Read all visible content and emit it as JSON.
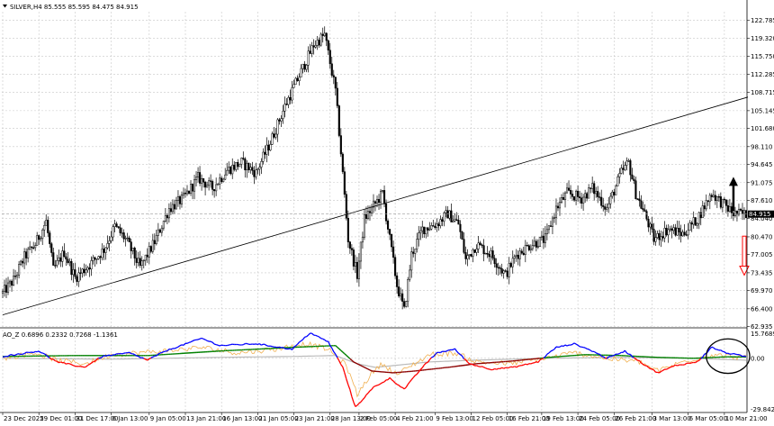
{
  "window": {
    "main_header": "SILVER,H4  85.555 85.595 84.475 84.915",
    "sub_header": "AO_Z 0.6896 0.2332 0.7268 -1.1361",
    "current_price_label": "84.915",
    "collapse_glyph": "triangle-down-icon"
  },
  "colors": {
    "background": "#ffffff",
    "grid": "#c8c8c8",
    "candle": "#000000",
    "trendline": "#000000",
    "arrow_up": "#000000",
    "arrow_down": "#ff0000",
    "ellipse": "#000000"
  },
  "chart_data": [
    {
      "type": "candlestick",
      "symbol": "SILVER",
      "timeframe": "H4",
      "ohlc_header": {
        "open": 85.555,
        "high": 85.595,
        "low": 84.475,
        "close": 84.915
      },
      "ylim": [
        62.935,
        124.5
      ],
      "y_ticks": [
        122.785,
        119.32,
        115.75,
        112.285,
        108.715,
        105.145,
        101.68,
        98.11,
        94.645,
        91.075,
        87.61,
        84.04,
        80.47,
        77.005,
        73.435,
        69.97,
        66.4,
        62.935
      ],
      "y_tick_labels": [
        "122.785",
        "119.320",
        "115.750",
        "112.285",
        "108.715",
        "105.145",
        "101.680",
        "98.110",
        "94.645",
        "91.075",
        "87.610",
        "84.040",
        "80.470",
        "77.005",
        "73.435",
        "69.970",
        "66.400",
        "62.935"
      ],
      "current_price": 84.915,
      "anchors": [
        {
          "i": 0,
          "p": 69.5
        },
        {
          "i": 6,
          "p": 72
        },
        {
          "i": 12,
          "p": 76.5
        },
        {
          "i": 18,
          "p": 79
        },
        {
          "i": 24,
          "p": 83.5
        },
        {
          "i": 28,
          "p": 74
        },
        {
          "i": 34,
          "p": 77.5
        },
        {
          "i": 40,
          "p": 72.5
        },
        {
          "i": 48,
          "p": 75
        },
        {
          "i": 56,
          "p": 78
        },
        {
          "i": 62,
          "p": 82.5
        },
        {
          "i": 68,
          "p": 80
        },
        {
          "i": 76,
          "p": 74.5
        },
        {
          "i": 84,
          "p": 79.5
        },
        {
          "i": 92,
          "p": 86
        },
        {
          "i": 100,
          "p": 88
        },
        {
          "i": 108,
          "p": 92
        },
        {
          "i": 116,
          "p": 90
        },
        {
          "i": 124,
          "p": 93.5
        },
        {
          "i": 132,
          "p": 95
        },
        {
          "i": 140,
          "p": 93
        },
        {
          "i": 148,
          "p": 99
        },
        {
          "i": 156,
          "p": 106
        },
        {
          "i": 164,
          "p": 112
        },
        {
          "i": 172,
          "p": 118
        },
        {
          "i": 178,
          "p": 120
        },
        {
          "i": 184,
          "p": 109
        },
        {
          "i": 187,
          "p": 97
        },
        {
          "i": 191,
          "p": 80
        },
        {
          "i": 196,
          "p": 73
        },
        {
          "i": 200,
          "p": 84
        },
        {
          "i": 206,
          "p": 87
        },
        {
          "i": 210,
          "p": 89
        },
        {
          "i": 214,
          "p": 80
        },
        {
          "i": 218,
          "p": 71
        },
        {
          "i": 222,
          "p": 66
        },
        {
          "i": 226,
          "p": 77
        },
        {
          "i": 232,
          "p": 82
        },
        {
          "i": 240,
          "p": 83
        },
        {
          "i": 246,
          "p": 85
        },
        {
          "i": 252,
          "p": 83
        },
        {
          "i": 256,
          "p": 76
        },
        {
          "i": 262,
          "p": 79
        },
        {
          "i": 270,
          "p": 77
        },
        {
          "i": 278,
          "p": 73
        },
        {
          "i": 284,
          "p": 77
        },
        {
          "i": 292,
          "p": 79
        },
        {
          "i": 300,
          "p": 80
        },
        {
          "i": 306,
          "p": 86
        },
        {
          "i": 312,
          "p": 89
        },
        {
          "i": 320,
          "p": 88
        },
        {
          "i": 326,
          "p": 90
        },
        {
          "i": 334,
          "p": 86
        },
        {
          "i": 342,
          "p": 93
        },
        {
          "i": 346,
          "p": 95
        },
        {
          "i": 350,
          "p": 89
        },
        {
          "i": 356,
          "p": 84
        },
        {
          "i": 360,
          "p": 80
        },
        {
          "i": 368,
          "p": 82
        },
        {
          "i": 376,
          "p": 81
        },
        {
          "i": 384,
          "p": 84
        },
        {
          "i": 392,
          "p": 89
        },
        {
          "i": 398,
          "p": 87
        },
        {
          "i": 404,
          "p": 85
        },
        {
          "i": 410,
          "p": 84.9
        }
      ],
      "trendline": {
        "start_index": 0,
        "start_price": 65.2,
        "end_index": 412,
        "end_price": 107.8
      },
      "annotation_arrows": [
        {
          "direction": "up",
          "index": 404,
          "price_from": 85.5,
          "price_to": 91.5
        },
        {
          "direction": "down",
          "index": 410,
          "price_from": 80.6,
          "price_to": 73.5
        }
      ]
    },
    {
      "type": "line",
      "name": "AO_Z",
      "header_values": [
        0.6896,
        0.2332,
        0.7268,
        -1.1361
      ],
      "ylim": [
        -29.8424,
        15.7689
      ],
      "y_ticks": [
        15.7689,
        0.0,
        -29.8424
      ],
      "y_tick_labels": [
        "15.7689",
        "0.00",
        "-29.8424"
      ],
      "series": [
        {
          "color": "#0000ff",
          "rule": "line1_when_positive"
        },
        {
          "color": "#ff0000",
          "rule": "line1_when_negative"
        },
        {
          "color": "#f0b050",
          "values_key": "line2"
        },
        {
          "color": "#008000",
          "rule": "line3_when_positive"
        },
        {
          "color": "#8b0000",
          "rule": "line3_when_negative"
        },
        {
          "color": "#bbbbbb",
          "values_key": "line4"
        }
      ],
      "line1_anchors": [
        {
          "i": 0,
          "v": 1
        },
        {
          "i": 20,
          "v": 4
        },
        {
          "i": 30,
          "v": -2
        },
        {
          "i": 45,
          "v": -5
        },
        {
          "i": 55,
          "v": 1
        },
        {
          "i": 70,
          "v": 3
        },
        {
          "i": 80,
          "v": -1
        },
        {
          "i": 90,
          "v": 4
        },
        {
          "i": 110,
          "v": 11
        },
        {
          "i": 120,
          "v": 7
        },
        {
          "i": 140,
          "v": 8
        },
        {
          "i": 160,
          "v": 5
        },
        {
          "i": 170,
          "v": 14
        },
        {
          "i": 180,
          "v": 9
        },
        {
          "i": 188,
          "v": -5
        },
        {
          "i": 195,
          "v": -27
        },
        {
          "i": 205,
          "v": -16
        },
        {
          "i": 214,
          "v": -11
        },
        {
          "i": 222,
          "v": -17
        },
        {
          "i": 232,
          "v": -5
        },
        {
          "i": 240,
          "v": 3
        },
        {
          "i": 250,
          "v": 5
        },
        {
          "i": 258,
          "v": -3
        },
        {
          "i": 270,
          "v": -6
        },
        {
          "i": 282,
          "v": -5
        },
        {
          "i": 296,
          "v": -2
        },
        {
          "i": 306,
          "v": 6
        },
        {
          "i": 316,
          "v": 8
        },
        {
          "i": 326,
          "v": 4
        },
        {
          "i": 334,
          "v": 0
        },
        {
          "i": 344,
          "v": 4
        },
        {
          "i": 354,
          "v": -3
        },
        {
          "i": 362,
          "v": -8
        },
        {
          "i": 372,
          "v": -4
        },
        {
          "i": 384,
          "v": -2
        },
        {
          "i": 392,
          "v": 6
        },
        {
          "i": 400,
          "v": 3
        },
        {
          "i": 412,
          "v": 0.7
        }
      ],
      "line2_anchors": [
        {
          "i": 0,
          "v": 0
        },
        {
          "i": 18,
          "v": 3
        },
        {
          "i": 30,
          "v": -1
        },
        {
          "i": 46,
          "v": -3
        },
        {
          "i": 60,
          "v": 2
        },
        {
          "i": 90,
          "v": 4
        },
        {
          "i": 110,
          "v": 6
        },
        {
          "i": 130,
          "v": 3
        },
        {
          "i": 150,
          "v": 5
        },
        {
          "i": 168,
          "v": 8
        },
        {
          "i": 180,
          "v": 5
        },
        {
          "i": 190,
          "v": -4
        },
        {
          "i": 196,
          "v": -20
        },
        {
          "i": 204,
          "v": -8
        },
        {
          "i": 210,
          "v": -3
        },
        {
          "i": 218,
          "v": -9
        },
        {
          "i": 226,
          "v": -4
        },
        {
          "i": 236,
          "v": 2
        },
        {
          "i": 250,
          "v": 3
        },
        {
          "i": 262,
          "v": -2
        },
        {
          "i": 280,
          "v": -3
        },
        {
          "i": 300,
          "v": 0
        },
        {
          "i": 316,
          "v": 3
        },
        {
          "i": 334,
          "v": 0
        },
        {
          "i": 352,
          "v": -2
        },
        {
          "i": 362,
          "v": -7
        },
        {
          "i": 376,
          "v": -2
        },
        {
          "i": 392,
          "v": 2
        },
        {
          "i": 412,
          "v": 0.2
        }
      ],
      "line3_anchors": [
        {
          "i": 0,
          "v": 1
        },
        {
          "i": 40,
          "v": 1.5
        },
        {
          "i": 80,
          "v": 1.5
        },
        {
          "i": 120,
          "v": 4
        },
        {
          "i": 160,
          "v": 6
        },
        {
          "i": 184,
          "v": 7
        },
        {
          "i": 194,
          "v": -2
        },
        {
          "i": 204,
          "v": -7
        },
        {
          "i": 216,
          "v": -8
        },
        {
          "i": 228,
          "v": -7
        },
        {
          "i": 246,
          "v": -5
        },
        {
          "i": 262,
          "v": -3
        },
        {
          "i": 282,
          "v": -1.5
        },
        {
          "i": 302,
          "v": 0.5
        },
        {
          "i": 322,
          "v": 2
        },
        {
          "i": 342,
          "v": 1.5
        },
        {
          "i": 362,
          "v": 0.5
        },
        {
          "i": 382,
          "v": 0
        },
        {
          "i": 400,
          "v": 0.8
        },
        {
          "i": 412,
          "v": 0.7
        }
      ],
      "line4_anchors": [
        {
          "i": 0,
          "v": 0
        },
        {
          "i": 60,
          "v": -0.5
        },
        {
          "i": 120,
          "v": 0.5
        },
        {
          "i": 160,
          "v": 1
        },
        {
          "i": 184,
          "v": 1.5
        },
        {
          "i": 196,
          "v": -3
        },
        {
          "i": 206,
          "v": -5
        },
        {
          "i": 216,
          "v": -4
        },
        {
          "i": 236,
          "v": -2
        },
        {
          "i": 262,
          "v": -1
        },
        {
          "i": 300,
          "v": 0
        },
        {
          "i": 340,
          "v": 0.5
        },
        {
          "i": 380,
          "v": 0
        },
        {
          "i": 412,
          "v": -1.1
        }
      ],
      "ellipse_highlight": {
        "center_index": 401,
        "center_value": 1.2,
        "width_bars": 24,
        "height_value": 19
      }
    }
  ],
  "x_axis": {
    "bars": 412,
    "ticks": [
      {
        "i": 0,
        "label": "23 Dec 2025"
      },
      {
        "i": 20,
        "label": "29 Dec 01:00"
      },
      {
        "i": 40,
        "label": "31 Dec 17:00"
      },
      {
        "i": 60,
        "label": "6 Jan 13:00"
      },
      {
        "i": 81,
        "label": "9 Jan 05:00"
      },
      {
        "i": 101,
        "label": "13 Jan 21:00"
      },
      {
        "i": 121,
        "label": "16 Jan 13:00"
      },
      {
        "i": 141,
        "label": "21 Jan 05:00"
      },
      {
        "i": 161,
        "label": "23 Jan 21:00"
      },
      {
        "i": 181,
        "label": "28 Jan 13:00"
      },
      {
        "i": 197,
        "label": "2 Feb 05:00"
      },
      {
        "i": 217,
        "label": "4 Feb 21:00"
      },
      {
        "i": 239,
        "label": "9 Feb 13:00"
      },
      {
        "i": 259,
        "label": "12 Feb 05:00"
      },
      {
        "i": 279,
        "label": "16 Feb 21:00"
      },
      {
        "i": 298,
        "label": "19 Feb 13:00"
      },
      {
        "i": 318,
        "label": "24 Feb 05:00"
      },
      {
        "i": 338,
        "label": "26 Feb 21:00"
      },
      {
        "i": 359,
        "label": "3 Mar 13:00"
      },
      {
        "i": 379,
        "label": "6 Mar 05:00"
      },
      {
        "i": 399,
        "label": "10 Mar 21:00"
      }
    ]
  }
}
